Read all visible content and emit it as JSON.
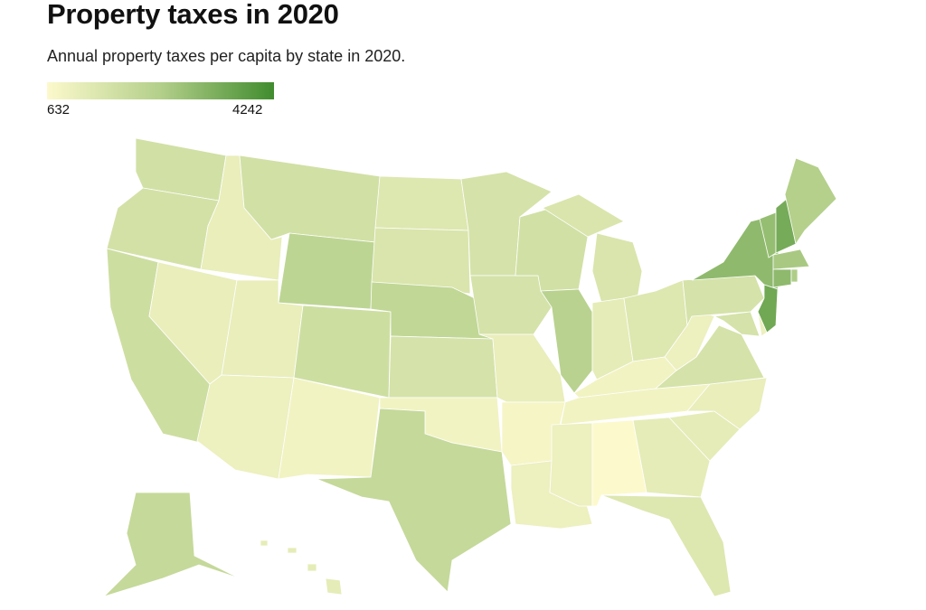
{
  "title": "Property taxes in 2020",
  "subtitle": "Annual property taxes per capita by state in 2020.",
  "legend": {
    "min_label": "632",
    "max_label": "4242",
    "min": 632,
    "max": 4242,
    "colors": [
      "#fcf9cc",
      "#b3cf8a",
      "#418c2e"
    ]
  },
  "chart_data": {
    "type": "choropleth",
    "title": "Property taxes in 2020",
    "unit": "USD per capita",
    "range": [
      632,
      4242
    ],
    "values": {
      "WA": 1700,
      "OR": 1650,
      "CA": 1800,
      "NV": 1100,
      "ID": 1100,
      "MT": 1700,
      "WY": 2200,
      "UT": 1100,
      "CO": 1800,
      "AZ": 1000,
      "NM": 900,
      "ND": 1400,
      "SD": 1500,
      "NE": 2100,
      "KS": 1600,
      "OK": 900,
      "TX": 2000,
      "MN": 1600,
      "IA": 1600,
      "MO": 1100,
      "AR": 800,
      "LA": 1000,
      "WI": 1700,
      "IL": 2300,
      "MI": 1500,
      "IN": 1200,
      "OH": 1400,
      "KY": 900,
      "TN": 900,
      "MS": 1000,
      "AL": 632,
      "GA": 1200,
      "FL": 1400,
      "SC": 1200,
      "NC": 1100,
      "VA": 1600,
      "WV": 1000,
      "PA": 1600,
      "NY": 3000,
      "VT": 2900,
      "NH": 3400,
      "ME": 2400,
      "MA": 2600,
      "CT": 3000,
      "RI": 2500,
      "NJ": 3500,
      "DE": 1000,
      "MD": 1600,
      "AK": 2000,
      "HI": 1200
    }
  }
}
